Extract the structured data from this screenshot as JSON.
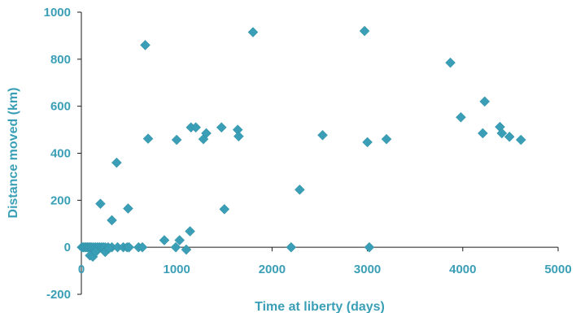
{
  "chart_data": {
    "type": "scatter",
    "title": "",
    "xlabel": "Time at liberty (days)",
    "ylabel": "Distance moved (km)",
    "xlim": [
      0,
      5000
    ],
    "ylim": [
      -200,
      1000
    ],
    "x_ticks": [
      0,
      1000,
      2000,
      3000,
      4000,
      5000
    ],
    "y_ticks": [
      -200,
      0,
      200,
      400,
      600,
      800,
      1000
    ],
    "grid": false,
    "legend": "none",
    "color": "#3A9FB6",
    "marker": "diamond",
    "points": [
      [
        5,
        0
      ],
      [
        20,
        0
      ],
      [
        35,
        0
      ],
      [
        50,
        0
      ],
      [
        65,
        0
      ],
      [
        80,
        0
      ],
      [
        95,
        0
      ],
      [
        110,
        0
      ],
      [
        130,
        0
      ],
      [
        150,
        0
      ],
      [
        170,
        0
      ],
      [
        190,
        0
      ],
      [
        210,
        0
      ],
      [
        230,
        0
      ],
      [
        250,
        0
      ],
      [
        280,
        0
      ],
      [
        320,
        0
      ],
      [
        380,
        0
      ],
      [
        440,
        0
      ],
      [
        480,
        0
      ],
      [
        500,
        0
      ],
      [
        600,
        0
      ],
      [
        640,
        0
      ],
      [
        90,
        -35
      ],
      [
        120,
        -40
      ],
      [
        150,
        -20
      ],
      [
        250,
        -20
      ],
      [
        290,
        -5
      ],
      [
        200,
        185
      ],
      [
        320,
        115
      ],
      [
        370,
        360
      ],
      [
        490,
        165
      ],
      [
        670,
        860
      ],
      [
        700,
        462
      ],
      [
        870,
        30
      ],
      [
        990,
        0
      ],
      [
        1030,
        30
      ],
      [
        1100,
        -10
      ],
      [
        1140,
        68
      ],
      [
        1000,
        457
      ],
      [
        1150,
        510
      ],
      [
        1200,
        510
      ],
      [
        1280,
        460
      ],
      [
        1310,
        485
      ],
      [
        1470,
        510
      ],
      [
        1500,
        162
      ],
      [
        1640,
        500
      ],
      [
        1650,
        472
      ],
      [
        1800,
        915
      ],
      [
        2200,
        0
      ],
      [
        2290,
        245
      ],
      [
        2530,
        477
      ],
      [
        2970,
        920
      ],
      [
        3000,
        447
      ],
      [
        3020,
        0
      ],
      [
        3200,
        460
      ],
      [
        3870,
        785
      ],
      [
        3980,
        553
      ],
      [
        4210,
        485
      ],
      [
        4230,
        620
      ],
      [
        4390,
        512
      ],
      [
        4410,
        485
      ],
      [
        4490,
        470
      ],
      [
        4610,
        457
      ]
    ]
  }
}
